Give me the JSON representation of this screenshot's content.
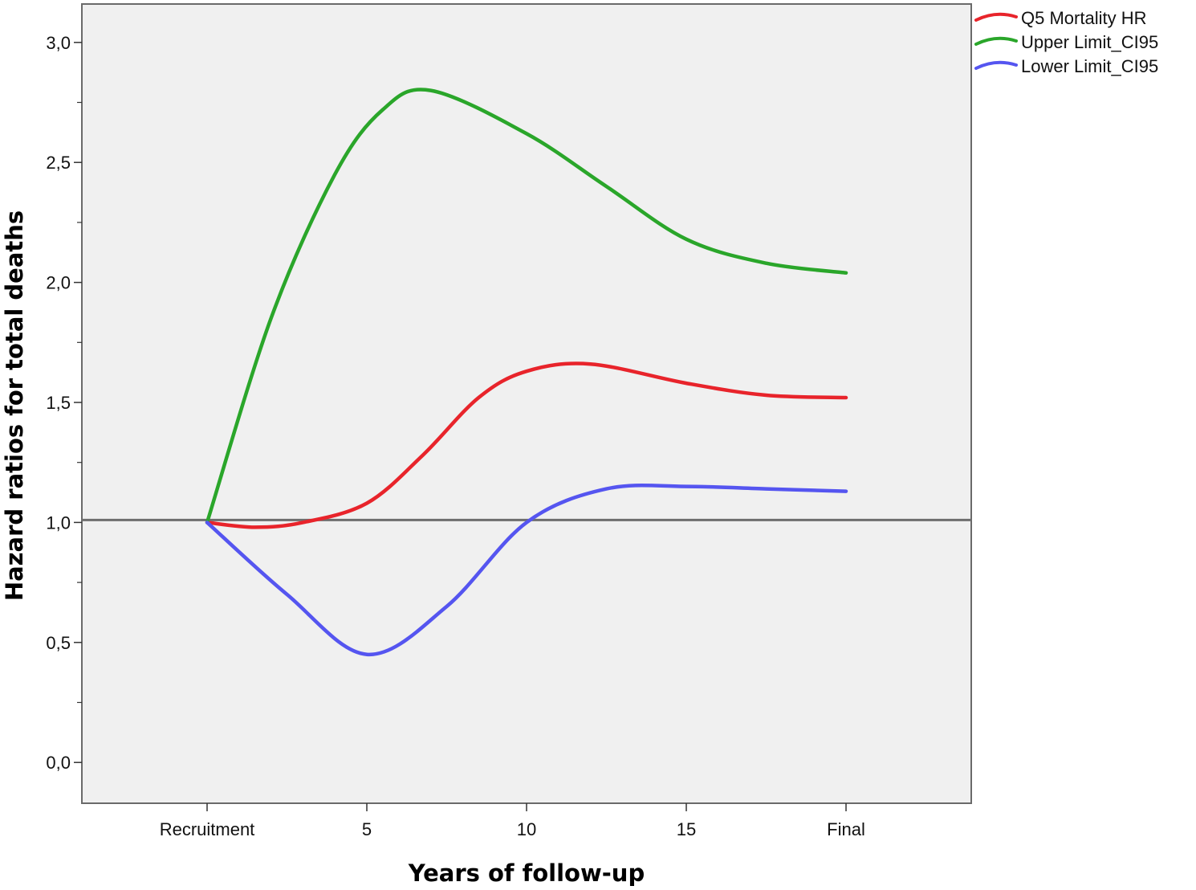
{
  "chart_data": {
    "type": "line",
    "title": "",
    "xlabel": "Years of follow-up",
    "ylabel": "Hazard ratios for total deaths",
    "categories": [
      "Recruitment",
      "5",
      "10",
      "15",
      "Final"
    ],
    "ylim": [
      -0.17,
      3.16
    ],
    "yticks": [
      {
        "value": 0.0,
        "label": "0,0"
      },
      {
        "value": 0.5,
        "label": "0,5"
      },
      {
        "value": 1.0,
        "label": "1,0"
      },
      {
        "value": 1.5,
        "label": "1,5"
      },
      {
        "value": 2.0,
        "label": "2,0"
      },
      {
        "value": 2.5,
        "label": "2,5"
      },
      {
        "value": 3.0,
        "label": "3,0"
      }
    ],
    "reference_line": 1.01,
    "legend_position": "top-right",
    "grid": false,
    "series": [
      {
        "name": "Q5 Mortality HR",
        "color": "#e8242b",
        "points": [
          {
            "x": 0.0,
            "y": 1.0
          },
          {
            "x": 0.3,
            "y": 0.98
          },
          {
            "x": 0.6,
            "y": 1.0
          },
          {
            "x": 1.0,
            "y": 1.08
          },
          {
            "x": 1.35,
            "y": 1.28
          },
          {
            "x": 1.7,
            "y": 1.52
          },
          {
            "x": 2.0,
            "y": 1.63
          },
          {
            "x": 2.4,
            "y": 1.66
          },
          {
            "x": 3.0,
            "y": 1.58
          },
          {
            "x": 3.5,
            "y": 1.53
          },
          {
            "x": 4.0,
            "y": 1.52
          }
        ]
      },
      {
        "name": "Upper Limit_CI95",
        "color": "#2aa62a",
        "points": [
          {
            "x": 0.0,
            "y": 1.0
          },
          {
            "x": 0.4,
            "y": 1.85
          },
          {
            "x": 0.8,
            "y": 2.45
          },
          {
            "x": 1.1,
            "y": 2.72
          },
          {
            "x": 1.4,
            "y": 2.8
          },
          {
            "x": 2.0,
            "y": 2.62
          },
          {
            "x": 2.5,
            "y": 2.4
          },
          {
            "x": 3.0,
            "y": 2.18
          },
          {
            "x": 3.5,
            "y": 2.08
          },
          {
            "x": 4.0,
            "y": 2.04
          }
        ]
      },
      {
        "name": "Lower Limit_CI95",
        "color": "#5555f0",
        "points": [
          {
            "x": 0.0,
            "y": 1.0
          },
          {
            "x": 0.5,
            "y": 0.7
          },
          {
            "x": 1.0,
            "y": 0.45
          },
          {
            "x": 1.5,
            "y": 0.65
          },
          {
            "x": 2.0,
            "y": 1.0
          },
          {
            "x": 2.5,
            "y": 1.14
          },
          {
            "x": 3.0,
            "y": 1.15
          },
          {
            "x": 3.5,
            "y": 1.14
          },
          {
            "x": 4.0,
            "y": 1.13
          }
        ]
      }
    ]
  }
}
